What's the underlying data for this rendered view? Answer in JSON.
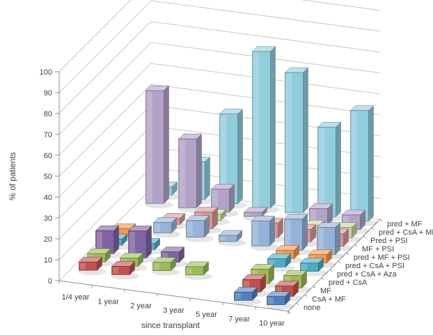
{
  "chart_data": {
    "type": "bar",
    "projection": "3d",
    "title": "",
    "xlabel": "since transplant",
    "ylabel": "% of patients",
    "ylim": [
      0,
      100
    ],
    "yticks": [
      0,
      10,
      20,
      30,
      40,
      50,
      60,
      70,
      80,
      90,
      100
    ],
    "grid": true,
    "legend_position": "depth-axis-right",
    "depth_order": "first series is nearest to viewer",
    "categories": [
      "1/4 year",
      "1 year",
      "2 year",
      "3 year",
      "5 year",
      "7 year",
      "10 year"
    ],
    "series": [
      {
        "name": "none",
        "color": "#4F81BD",
        "values": [
          0,
          0,
          0,
          0,
          0,
          4,
          4
        ]
      },
      {
        "name": "CsA + MF",
        "color": "#C0504D",
        "values": [
          4,
          4,
          0,
          0,
          0,
          6,
          5
        ]
      },
      {
        "name": "MF",
        "color": "#9BBB59",
        "values": [
          4,
          4,
          4,
          4,
          0,
          7,
          6
        ]
      },
      {
        "name": "pred + CsA",
        "color": "#8064A2",
        "values": [
          11,
          13,
          5,
          0,
          0,
          0,
          0
        ]
      },
      {
        "name": "pred + CsA + Aza",
        "color": "#4BACC6",
        "values": [
          3,
          3,
          0,
          0,
          0,
          4,
          4
        ]
      },
      {
        "name": "pred + CsA + PSI",
        "color": "#F79646",
        "values": [
          4,
          0,
          0,
          0,
          0,
          4,
          4
        ]
      },
      {
        "name": "pred + MF + PSI",
        "color": "#95B3D7",
        "values": [
          0,
          5,
          8,
          3,
          12,
          15,
          13
        ]
      },
      {
        "name": "MF + PSI",
        "color": "#D99694",
        "values": [
          0,
          3,
          8,
          0,
          7,
          6,
          6
        ]
      },
      {
        "name": "Pred + PSI",
        "color": "#C3D69B",
        "values": [
          0,
          0,
          3,
          0,
          0,
          4,
          5
        ]
      },
      {
        "name": "pred + CsA + MF",
        "color": "#B2A2C7",
        "values": [
          54,
          33,
          11,
          2,
          0,
          8,
          7
        ]
      },
      {
        "name": "pred + MF",
        "color": "#92CDDC",
        "values": [
          4,
          18,
          43,
          75,
          67,
          43,
          53
        ]
      }
    ],
    "colors": {
      "background": "#FFFFFF",
      "grid": "#C9C9C9",
      "axis": "#8C8C8C",
      "text": "#3F3F3F"
    }
  }
}
